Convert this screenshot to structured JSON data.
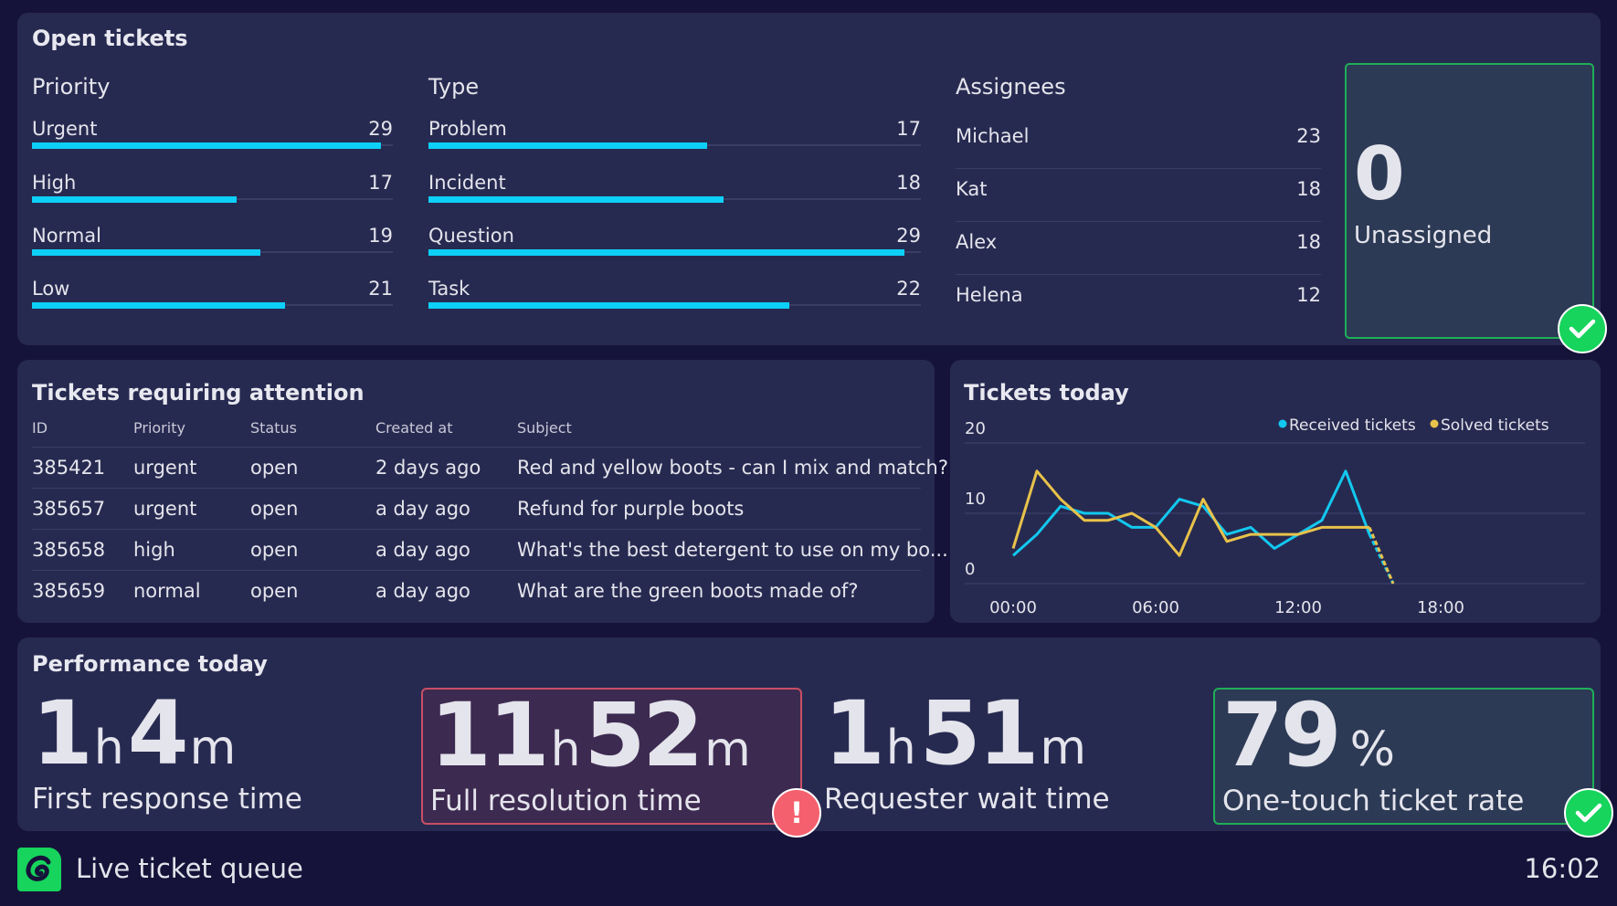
{
  "open_tickets": {
    "title": "Open tickets",
    "priority": {
      "heading": "Priority",
      "max": 30,
      "items": [
        {
          "label": "Urgent",
          "value": 29
        },
        {
          "label": "High",
          "value": 17
        },
        {
          "label": "Normal",
          "value": 19
        },
        {
          "label": "Low",
          "value": 21
        }
      ]
    },
    "type": {
      "heading": "Type",
      "max": 30,
      "items": [
        {
          "label": "Problem",
          "value": 17
        },
        {
          "label": "Incident",
          "value": 18
        },
        {
          "label": "Question",
          "value": 29
        },
        {
          "label": "Task",
          "value": 22
        }
      ]
    },
    "assignees": {
      "heading": "Assignees",
      "items": [
        {
          "label": "Michael",
          "value": 23
        },
        {
          "label": "Kat",
          "value": 18
        },
        {
          "label": "Alex",
          "value": 18
        },
        {
          "label": "Helena",
          "value": 12
        }
      ]
    },
    "unassigned": {
      "value": "0",
      "label": "Unassigned",
      "status": "check-icon"
    }
  },
  "attention": {
    "title": "Tickets requiring attention",
    "columns": [
      "ID",
      "Priority",
      "Status",
      "Created at",
      "Subject"
    ],
    "rows": [
      [
        "385421",
        "urgent",
        "open",
        "2 days ago",
        "Red and yellow boots - can I mix and match?"
      ],
      [
        "385657",
        "urgent",
        "open",
        "a day ago",
        "Refund for purple boots"
      ],
      [
        "385658",
        "high",
        "open",
        "a day ago",
        "What's the best detergent to use on my bo..."
      ],
      [
        "385659",
        "normal",
        "open",
        "a day ago",
        "What are the green boots made of?"
      ]
    ]
  },
  "tickets_today": {
    "title": "Tickets today"
  },
  "chart_data": {
    "type": "line",
    "x": [
      "00:00",
      "01:00",
      "02:00",
      "03:00",
      "04:00",
      "05:00",
      "06:00",
      "07:00",
      "08:00",
      "09:00",
      "10:00",
      "11:00",
      "12:00",
      "13:00",
      "14:00",
      "15:00",
      "16:00"
    ],
    "xticks": [
      "00:00",
      "06:00",
      "12:00",
      "18:00"
    ],
    "yticks": [
      0,
      10,
      20
    ],
    "ylim": [
      0,
      20
    ],
    "xlim_hours": [
      0,
      24
    ],
    "grid": true,
    "legend": "top-right",
    "series": [
      {
        "name": "Received tickets",
        "color": "#12c8f0",
        "values": [
          4,
          7,
          11,
          10,
          10,
          8,
          8,
          12,
          11,
          7,
          8,
          5,
          7,
          9,
          16,
          7,
          0
        ],
        "dashed_last_segment": true
      },
      {
        "name": "Solved tickets",
        "color": "#e8c24a",
        "values": [
          5,
          16,
          12,
          9,
          9,
          10,
          8,
          4,
          12,
          6,
          7,
          7,
          7,
          8,
          8,
          8,
          0
        ],
        "dashed_last_segment": true
      }
    ]
  },
  "performance": {
    "title": "Performance today",
    "metrics": [
      {
        "n1": "1",
        "u1": "h",
        "n2": "4",
        "u2": "m",
        "label": "First response time",
        "status": ""
      },
      {
        "n1": "11",
        "u1": "h",
        "n2": "52",
        "u2": "m",
        "label": "Full resolution time",
        "status": "alert-icon"
      },
      {
        "n1": "1",
        "u1": "h",
        "n2": "51",
        "u2": "m",
        "label": "Requester wait time",
        "status": ""
      },
      {
        "n1": "79",
        "u1": "",
        "n2": "",
        "u2": "%",
        "label": "One-touch ticket rate",
        "status": "check-icon"
      }
    ]
  },
  "footer": {
    "title": "Live ticket queue",
    "time": "16:02"
  },
  "colors": {
    "background": "#16133a",
    "panel": "#272a50",
    "bar": "#0cd0f8",
    "good": "#16d45c",
    "alert": "#f4606e"
  },
  "badges": {
    "alert": "!"
  }
}
